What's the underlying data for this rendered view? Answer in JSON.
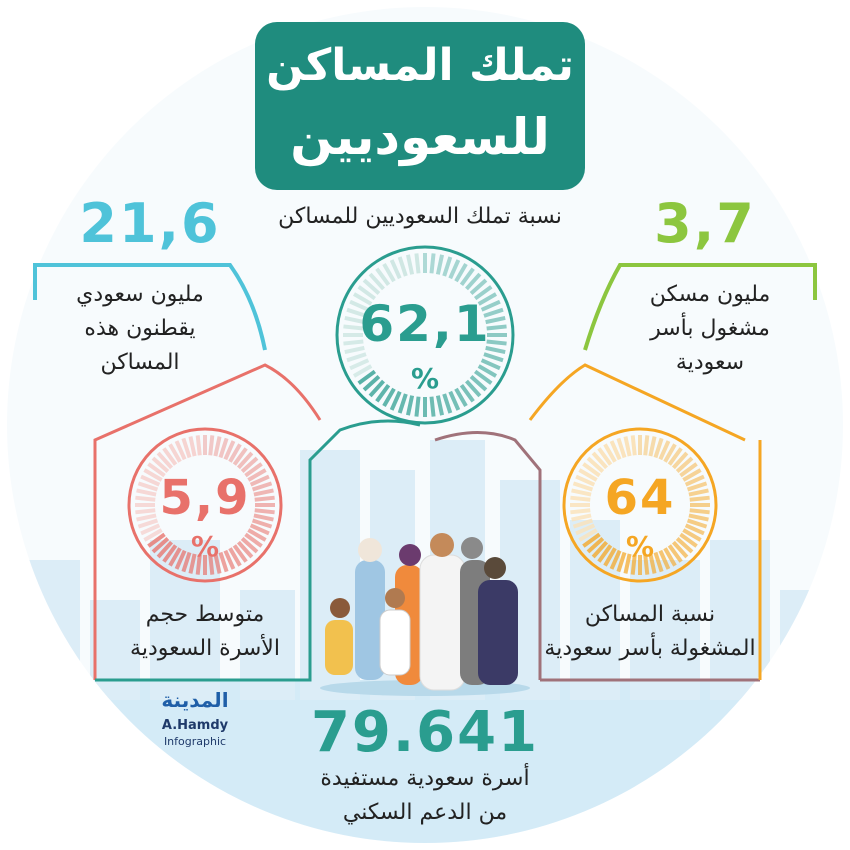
{
  "header": {
    "title_line1": "تملك المساكن",
    "title_line2": "للسعوديين"
  },
  "center": {
    "label": "نسبة تملك السعوديين للمساكن",
    "value": "62,1",
    "unit": "%"
  },
  "top_left": {
    "value": "21,6",
    "lines": [
      "مليون سعودي",
      "يقطنون هذه",
      "المساكن"
    ]
  },
  "top_right": {
    "value": "3,7",
    "lines": [
      "مليون مسكن",
      "مشغول بأسر",
      "سعودية"
    ]
  },
  "left": {
    "value": "5,9",
    "unit": "%",
    "lines": [
      "متوسط حجم",
      "الأسرة السعودية"
    ]
  },
  "right": {
    "value": "64",
    "unit": "%",
    "lines": [
      "نسبة المساكن",
      "المشغولة بأسر سعودية"
    ]
  },
  "bottom": {
    "value": "79.641",
    "lines": [
      "أسرة سعودية مستفيدة",
      "من الدعم السكني"
    ]
  },
  "logo": {
    "name": "المدينة",
    "author": "A.Hamdy",
    "kind": "Infographic"
  }
}
